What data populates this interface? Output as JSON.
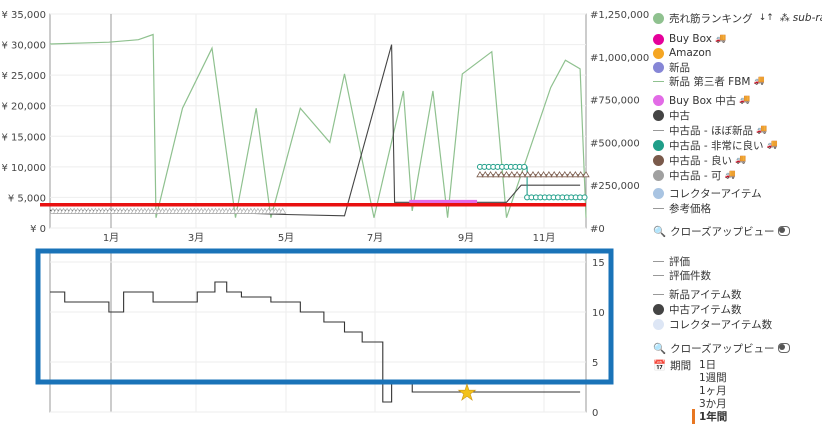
{
  "colors": {
    "sales_rank": "#8fc18f",
    "buybox": "#e5009a",
    "amazon": "#f5a623",
    "new": "#8686d6",
    "buybox_used": "#e26be6",
    "used": "#444444",
    "used_like_new": "#aaaaaa",
    "used_very_good": "#1f9e89",
    "used_good": "#7a5a4b",
    "used_acceptable": "#a0a0a0",
    "collectible": "#a9c4e2",
    "red_line": "#e81010",
    "highlight_box": "#1a73b8"
  },
  "top_chart": {
    "y_left_ticks": [
      "¥ 35,000",
      "¥ 30,000",
      "¥ 25,000",
      "¥ 20,000",
      "¥ 15,000",
      "¥ 10,000",
      "¥ 5,000",
      "¥ 0"
    ],
    "y_right_ticks": [
      "#1,250,000",
      "#1,000,000",
      "#750,000",
      "#500,000",
      "#250,000",
      "#0"
    ],
    "x_ticks": [
      "1月",
      "3月",
      "5月",
      "7月",
      "9月",
      "11月"
    ]
  },
  "bottom_chart": {
    "y_right_ticks": [
      "15",
      "10",
      "5",
      "0"
    ]
  },
  "legend": {
    "sales_rank": "売れ筋ランキング",
    "sort_icon_text": "↓↑",
    "subrank": "sub-ra",
    "buybox": "Buy Box",
    "amazon": "Amazon",
    "new": "新品",
    "new_3p_fbm": "新品 第三者 FBM",
    "buybox_used": "Buy Box 中古",
    "used": "中古",
    "used_like_new": "中古品 - ほぼ新品",
    "used_very_good": "中古品 - 非常に良い",
    "used_good": "中古品 - 良い",
    "used_acceptable": "中古品 - 可",
    "collectible": "コレクターアイテム",
    "list_price": "参考価格",
    "closeup_top": "クローズアップビュー",
    "rating": "評価",
    "rating_count": "評価件数",
    "new_item_count": "新品アイテム数",
    "used_item_count": "中古アイテム数",
    "collectible_item_count": "コレクターアイテム数",
    "closeup_bottom": "クローズアップビュー",
    "period_label": "期間",
    "periods": [
      "1日",
      "1週間",
      "1ヶ月",
      "3か月",
      "1年間"
    ]
  },
  "chart_data": [
    {
      "type": "line",
      "title": "",
      "x_range": [
        "Dec",
        "Nov"
      ],
      "ylim_left": [
        0,
        35000
      ],
      "ylim_right": [
        0,
        1250000
      ],
      "series": [
        {
          "name": "売れ筋ランキング",
          "axis": "right",
          "values_approx": [
            [
              0,
              1075000
            ],
            [
              2,
              1085000
            ],
            [
              3,
              1100000
            ],
            [
              3.5,
              1130000
            ],
            [
              3.6,
              60000
            ],
            [
              4.5,
              700000
            ],
            [
              5.5,
              1050000
            ],
            [
              6.3,
              60000
            ],
            [
              7,
              700000
            ],
            [
              7.5,
              60000
            ],
            [
              8.5,
              700000
            ],
            [
              9.5,
              500000
            ],
            [
              10,
              900000
            ],
            [
              11,
              60000
            ],
            [
              12,
              800000
            ],
            [
              12.3,
              100000
            ],
            [
              13,
              800000
            ],
            [
              13.5,
              60000
            ],
            [
              14,
              900000
            ],
            [
              15,
              1030000
            ],
            [
              15.5,
              60000
            ],
            [
              17,
              820000
            ],
            [
              17.5,
              980000
            ],
            [
              18,
              930000
            ],
            [
              18.2,
              60000
            ]
          ]
        },
        {
          "name": "中古",
          "axis": "left",
          "values_approx": [
            [
              0,
              2900
            ],
            [
              3,
              2800
            ],
            [
              5.5,
              2600
            ],
            [
              8,
              2200
            ],
            [
              10,
              2000
            ],
            [
              11.6,
              30000
            ],
            [
              11.7,
              4200
            ],
            [
              12,
              4200
            ],
            [
              15.5,
              4200
            ],
            [
              16,
              7000
            ],
            [
              18,
              7000
            ]
          ]
        },
        {
          "name": "中古品 - 非常に良い",
          "axis": "left",
          "values_approx": [
            [
              14.6,
              10000
            ],
            [
              16.2,
              10000
            ],
            [
              16.2,
              5000
            ],
            [
              18.2,
              5000
            ]
          ]
        },
        {
          "name": "中古品 - 良い",
          "axis": "left",
          "values_approx": [
            [
              14.6,
              8700
            ],
            [
              18.2,
              8700
            ]
          ]
        }
      ],
      "reference_line": {
        "axis": "left",
        "value": 3800
      }
    },
    {
      "type": "line",
      "x_range": [
        "Dec",
        "Nov"
      ],
      "ylim_right": [
        0,
        16
      ],
      "series": [
        {
          "name": "中古アイテム数",
          "values_approx": [
            [
              0,
              12
            ],
            [
              0.5,
              11
            ],
            [
              2,
              10
            ],
            [
              2.5,
              12
            ],
            [
              3.5,
              11
            ],
            [
              4.5,
              11
            ],
            [
              5,
              12
            ],
            [
              5.6,
              13
            ],
            [
              6,
              12
            ],
            [
              6.5,
              11.5
            ],
            [
              7.5,
              11
            ],
            [
              8.5,
              10
            ],
            [
              9.3,
              9
            ],
            [
              10,
              8
            ],
            [
              10.6,
              7
            ],
            [
              11.3,
              1
            ],
            [
              11.6,
              3
            ],
            [
              12.3,
              2
            ],
            [
              13,
              2
            ],
            [
              18,
              2
            ]
          ]
        }
      ]
    }
  ]
}
